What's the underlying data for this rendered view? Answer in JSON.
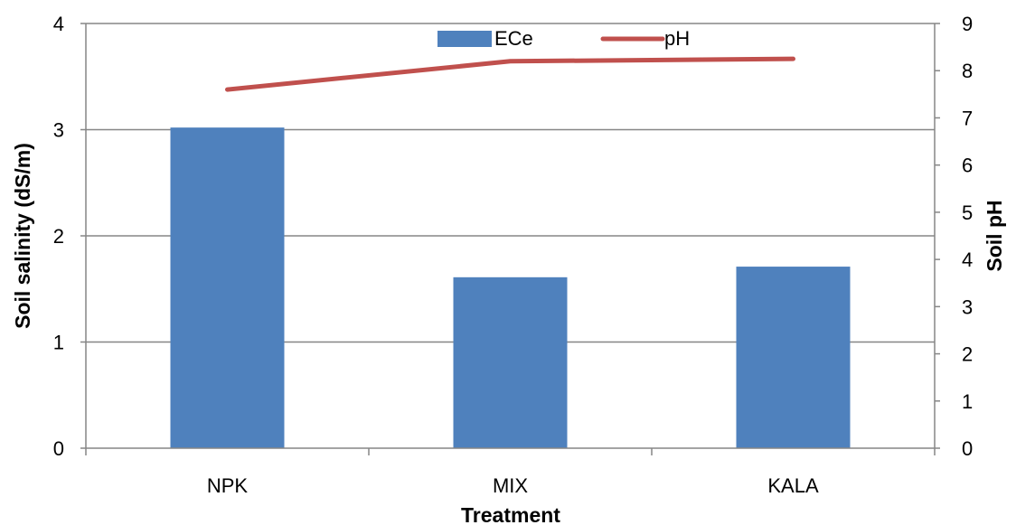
{
  "chart_data": {
    "type": "bar",
    "categories": [
      "NPK",
      "MIX",
      "KALA"
    ],
    "series": [
      {
        "name": "ECe",
        "type": "bar",
        "axis": "left",
        "values": [
          3.02,
          1.61,
          1.71
        ],
        "color": "#4F81BD"
      },
      {
        "name": "pH",
        "type": "line",
        "axis": "right",
        "values": [
          7.6,
          8.2,
          8.25
        ],
        "color": "#C0504D"
      }
    ],
    "xlabel": "Treatment",
    "ylabel": "Soil salinity (dS/m)",
    "y2label": "Soil pH",
    "ylim": [
      0,
      4
    ],
    "y2lim": [
      0,
      9
    ],
    "yticks": [
      "0",
      "1",
      "2",
      "3",
      "4"
    ],
    "y2ticks": [
      "0",
      "1",
      "2",
      "3",
      "4",
      "5",
      "6",
      "7",
      "8",
      "9"
    ],
    "grid": true,
    "legend_position": "top-center"
  }
}
